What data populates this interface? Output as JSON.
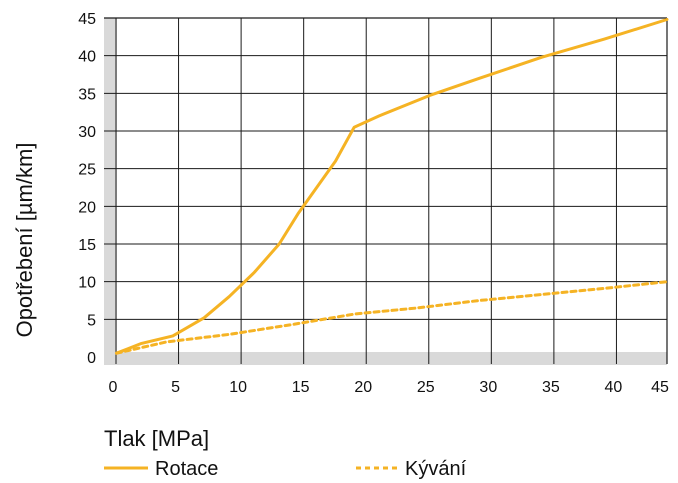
{
  "chart_data": {
    "type": "line",
    "xlabel": "Tlak [MPa]",
    "ylabel": "Opotřebení [µm/km]",
    "xlim": [
      0,
      45
    ],
    "ylim": [
      0,
      45
    ],
    "x_ticks": [
      0,
      5,
      10,
      15,
      20,
      25,
      30,
      35,
      40,
      45
    ],
    "y_ticks": [
      0,
      5,
      10,
      15,
      20,
      25,
      30,
      35,
      40,
      45
    ],
    "grid": true,
    "legend_position": "bottom",
    "series": [
      {
        "name": "Rotace",
        "style": "solid",
        "color": "#F5B324",
        "points": [
          [
            1,
            0.5
          ],
          [
            3,
            1.8
          ],
          [
            5.5,
            2.8
          ],
          [
            8,
            5.2
          ],
          [
            10,
            8
          ],
          [
            12,
            11.2
          ],
          [
            14,
            15
          ],
          [
            15.5,
            19
          ],
          [
            17,
            22.5
          ],
          [
            18.5,
            26
          ],
          [
            20,
            30.5
          ],
          [
            22,
            32
          ],
          [
            26,
            34.7
          ],
          [
            30,
            37
          ],
          [
            35,
            39.8
          ],
          [
            40,
            42.2
          ],
          [
            45,
            44.8
          ]
        ]
      },
      {
        "name": "Kývání",
        "style": "dashed",
        "color": "#F5B324",
        "points": [
          [
            1,
            0.5
          ],
          [
            5,
            2
          ],
          [
            10,
            3
          ],
          [
            15,
            4.3
          ],
          [
            20,
            5.7
          ],
          [
            25,
            6.5
          ],
          [
            30,
            7.5
          ],
          [
            35,
            8.3
          ],
          [
            40,
            9.1
          ],
          [
            45,
            10
          ]
        ]
      }
    ]
  },
  "colors": {
    "line": "#F5B324",
    "axis_band": "#D9D9D9",
    "grid": "#1a1a1a"
  }
}
